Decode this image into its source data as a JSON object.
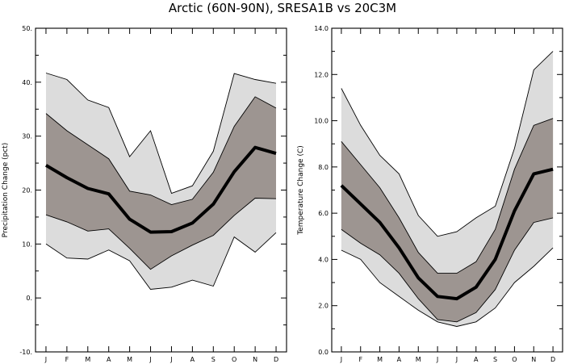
{
  "figure_title": "Arctic (60N-90N), SRESA1B vs 20C3M",
  "chart_data": [
    {
      "type": "area",
      "title": "Arctic (60N-90N), SRESA1B vs 20C3M",
      "xlabel": "",
      "ylabel": "Precipitation Change (pct)",
      "categories": [
        "J",
        "F",
        "M",
        "A",
        "M",
        "J",
        "J",
        "A",
        "S",
        "O",
        "N",
        "D"
      ],
      "ylim": [
        -10,
        50
      ],
      "y_major_ticks": [
        -10,
        0,
        10,
        20,
        30,
        40,
        50
      ],
      "y_tick_labels": [
        "-10.",
        "0.",
        "10.",
        "20.",
        "30.",
        "40.",
        "50."
      ],
      "y_minor_step": 5,
      "series": [
        {
          "name": "max",
          "values": [
            41.7,
            40.5,
            36.7,
            35.3,
            26.2,
            31.0,
            19.4,
            20.8,
            27.2,
            41.6,
            40.5,
            39.8
          ]
        },
        {
          "name": "upper quartile",
          "values": [
            34.2,
            31.0,
            28.4,
            25.8,
            19.8,
            19.1,
            17.3,
            18.3,
            23.3,
            31.8,
            37.3,
            35.2
          ]
        },
        {
          "name": "median",
          "values": [
            24.6,
            22.3,
            20.3,
            19.3,
            14.6,
            12.2,
            12.3,
            13.9,
            17.4,
            23.4,
            27.9,
            26.8
          ]
        },
        {
          "name": "lower quartile",
          "values": [
            15.4,
            14.1,
            12.4,
            12.8,
            9.2,
            5.3,
            7.8,
            9.8,
            11.6,
            15.3,
            18.5,
            18.4
          ]
        },
        {
          "name": "min",
          "values": [
            10.0,
            7.4,
            7.2,
            8.9,
            6.9,
            1.6,
            2.0,
            3.3,
            2.2,
            11.3,
            8.5,
            12.1
          ]
        }
      ]
    },
    {
      "type": "area",
      "title": "Arctic (60N-90N), SRESA1B vs 20C3M",
      "xlabel": "",
      "ylabel": "Temperature Change (C)",
      "categories": [
        "J",
        "F",
        "M",
        "A",
        "M",
        "J",
        "J",
        "A",
        "S",
        "O",
        "N",
        "D"
      ],
      "ylim": [
        0,
        14
      ],
      "y_major_ticks": [
        0,
        2,
        4,
        6,
        8,
        10,
        12,
        14
      ],
      "y_tick_labels": [
        "0.0",
        "2.0",
        "4.0",
        "6.0",
        "8.0",
        "10.0",
        "12.0",
        "14.0"
      ],
      "y_minor_step": 1,
      "series": [
        {
          "name": "max",
          "values": [
            11.4,
            9.8,
            8.5,
            7.7,
            5.9,
            5.0,
            5.2,
            5.8,
            6.3,
            8.8,
            12.2,
            13.0
          ]
        },
        {
          "name": "upper quartile",
          "values": [
            9.1,
            8.1,
            7.1,
            5.8,
            4.3,
            3.4,
            3.4,
            3.9,
            5.3,
            7.9,
            9.8,
            10.1
          ]
        },
        {
          "name": "median",
          "values": [
            7.2,
            6.4,
            5.6,
            4.5,
            3.2,
            2.4,
            2.3,
            2.8,
            4.0,
            6.1,
            7.7,
            7.9
          ]
        },
        {
          "name": "lower quartile",
          "values": [
            5.3,
            4.7,
            4.2,
            3.4,
            2.3,
            1.4,
            1.3,
            1.7,
            2.7,
            4.4,
            5.6,
            5.8
          ]
        },
        {
          "name": "min",
          "values": [
            4.4,
            4.0,
            3.0,
            2.4,
            1.8,
            1.3,
            1.1,
            1.3,
            1.9,
            3.0,
            3.7,
            4.5
          ]
        }
      ]
    }
  ],
  "colors": {
    "outer_band": "#dcdcdc",
    "inner_band": "#9d9591",
    "median_line": "#000000",
    "frame": "#000000"
  }
}
